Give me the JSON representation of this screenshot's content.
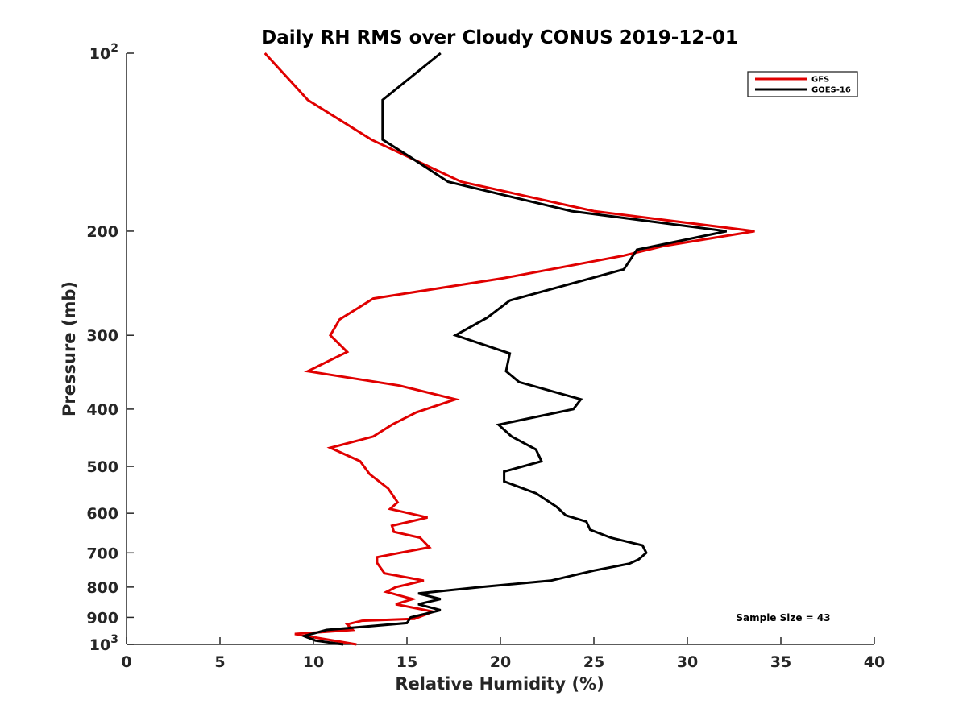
{
  "chart_data": {
    "type": "line",
    "title": "Daily RH RMS over Cloudy CONUS 2019-12-01",
    "xlabel": "Relative Humidity (%)",
    "ylabel": "Pressure (mb)",
    "xlim": [
      0,
      40
    ],
    "ylim": [
      100,
      1000
    ],
    "y_scale": "log",
    "y_reversed": true,
    "grid": false,
    "legend_position": "top-right",
    "x_ticks": [
      {
        "value": 0,
        "label": "0"
      },
      {
        "value": 5,
        "label": "5"
      },
      {
        "value": 10,
        "label": "10"
      },
      {
        "value": 15,
        "label": "15"
      },
      {
        "value": 20,
        "label": "20"
      },
      {
        "value": 25,
        "label": "25"
      },
      {
        "value": 30,
        "label": "30"
      },
      {
        "value": 35,
        "label": "35"
      },
      {
        "value": 40,
        "label": "40"
      }
    ],
    "y_ticks": [
      {
        "value": 100,
        "base": "10",
        "exp": "2"
      },
      {
        "value": 200,
        "label": "200"
      },
      {
        "value": 300,
        "label": "300"
      },
      {
        "value": 400,
        "label": "400"
      },
      {
        "value": 500,
        "label": "500"
      },
      {
        "value": 600,
        "label": "600"
      },
      {
        "value": 700,
        "label": "700"
      },
      {
        "value": 800,
        "label": "800"
      },
      {
        "value": 900,
        "label": "900"
      },
      {
        "value": 1000,
        "base": "10",
        "exp": "3"
      }
    ],
    "series": [
      {
        "name": "GFS",
        "color": "#e00000",
        "points": [
          [
            7.4,
            100
          ],
          [
            9.7,
            120
          ],
          [
            13.1,
            140
          ],
          [
            17.9,
            165
          ],
          [
            25.0,
            185
          ],
          [
            33.6,
            200
          ],
          [
            28.7,
            212
          ],
          [
            26.6,
            220
          ],
          [
            20.2,
            240
          ],
          [
            13.2,
            260
          ],
          [
            11.4,
            282
          ],
          [
            10.9,
            300
          ],
          [
            11.8,
            320
          ],
          [
            9.7,
            345
          ],
          [
            14.6,
            365
          ],
          [
            17.6,
            385
          ],
          [
            15.5,
            405
          ],
          [
            14.2,
            425
          ],
          [
            13.2,
            445
          ],
          [
            10.9,
            465
          ],
          [
            12.5,
            490
          ],
          [
            13.0,
            515
          ],
          [
            14.0,
            545
          ],
          [
            14.5,
            575
          ],
          [
            14.1,
            590
          ],
          [
            16.1,
            610
          ],
          [
            14.2,
            630
          ],
          [
            14.3,
            645
          ],
          [
            15.7,
            660
          ],
          [
            16.2,
            685
          ],
          [
            13.4,
            712
          ],
          [
            13.4,
            728
          ],
          [
            13.8,
            758
          ],
          [
            15.9,
            780
          ],
          [
            14.4,
            800
          ],
          [
            13.9,
            815
          ],
          [
            15.3,
            838
          ],
          [
            14.4,
            855
          ],
          [
            16.4,
            880
          ],
          [
            15.4,
            905
          ],
          [
            12.6,
            912
          ],
          [
            11.8,
            925
          ],
          [
            12.1,
            945
          ],
          [
            9.0,
            960
          ],
          [
            10.4,
            977
          ],
          [
            12.3,
            1000
          ]
        ]
      },
      {
        "name": "GOES-16",
        "color": "#000000",
        "points": [
          [
            16.8,
            100
          ],
          [
            13.7,
            120
          ],
          [
            13.7,
            140
          ],
          [
            15.2,
            150
          ],
          [
            17.2,
            165
          ],
          [
            23.8,
            185
          ],
          [
            32.1,
            200
          ],
          [
            27.3,
            215
          ],
          [
            26.6,
            232
          ],
          [
            20.5,
            262
          ],
          [
            19.3,
            280
          ],
          [
            17.6,
            300
          ],
          [
            20.5,
            322
          ],
          [
            20.3,
            345
          ],
          [
            21.0,
            360
          ],
          [
            24.3,
            385
          ],
          [
            23.9,
            400
          ],
          [
            19.9,
            425
          ],
          [
            20.6,
            445
          ],
          [
            21.9,
            468
          ],
          [
            22.2,
            490
          ],
          [
            20.2,
            510
          ],
          [
            20.2,
            530
          ],
          [
            21.9,
            555
          ],
          [
            23.0,
            585
          ],
          [
            23.5,
            605
          ],
          [
            24.6,
            620
          ],
          [
            24.8,
            640
          ],
          [
            25.9,
            660
          ],
          [
            27.6,
            680
          ],
          [
            27.8,
            700
          ],
          [
            27.4,
            718
          ],
          [
            26.9,
            730
          ],
          [
            25.0,
            750
          ],
          [
            22.7,
            780
          ],
          [
            18.9,
            800
          ],
          [
            15.6,
            820
          ],
          [
            16.8,
            838
          ],
          [
            15.6,
            855
          ],
          [
            16.8,
            875
          ],
          [
            15.2,
            900
          ],
          [
            15.0,
            920
          ],
          [
            10.7,
            945
          ],
          [
            9.5,
            968
          ],
          [
            10.1,
            985
          ],
          [
            11.6,
            1000
          ]
        ]
      }
    ],
    "annotations": [
      {
        "text": "Sample Size = 43"
      }
    ]
  }
}
